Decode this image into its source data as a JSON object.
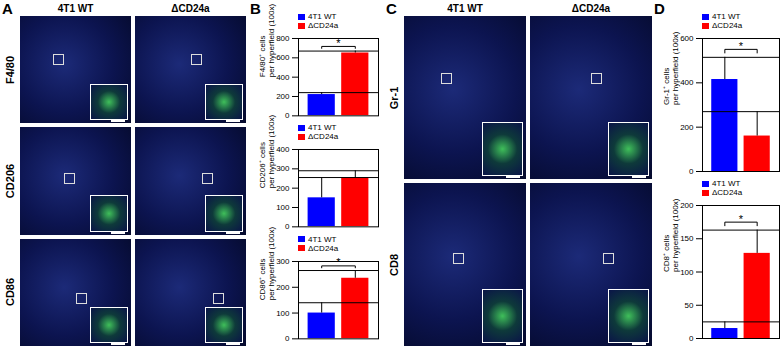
{
  "figure": {
    "panels": [
      {
        "label": "A",
        "type": "images",
        "columns": [
          "4T1 WT",
          "ΔCD24a"
        ],
        "rows": [
          "F4/80",
          "CD206",
          "CD86"
        ]
      },
      {
        "label": "B",
        "type": "charts"
      },
      {
        "label": "C",
        "type": "images",
        "columns": [
          "4T1 WT",
          "ΔCD24a"
        ],
        "rows": [
          "Gr-1",
          "CD8"
        ]
      },
      {
        "label": "D",
        "type": "charts"
      }
    ]
  },
  "chart_data": [
    {
      "type": "bar",
      "ylabel": [
        "F4/80⁺ cells",
        "per hyperfield (100x)"
      ],
      "categories": [
        null
      ],
      "series": [
        {
          "name": "4T1 WT",
          "color": "#0000ff",
          "values": [
            220
          ],
          "errors": [
            20
          ]
        },
        {
          "name": "ΔCD24a",
          "color": "#ff0000",
          "values": [
            650
          ],
          "errors": [
            20
          ]
        }
      ],
      "ylim": [
        0,
        800
      ],
      "yticks": [
        0,
        200,
        400,
        600,
        800
      ],
      "legend": "top left",
      "tick_labels": "y",
      "annotations": [
        "*"
      ]
    },
    {
      "type": "bar",
      "ylabel": [
        "CD206⁺ cells",
        "per hyperfield (100x)"
      ],
      "categories": [
        null
      ],
      "series": [
        {
          "name": "4T1 WT",
          "color": "#0000ff",
          "values": [
            150
          ],
          "errors": [
            105
          ]
        },
        {
          "name": "ΔCD24a",
          "color": "#ff0000",
          "values": [
            255
          ],
          "errors": [
            35
          ]
        }
      ],
      "ylim": [
        0,
        400
      ],
      "yticks": [
        0,
        100,
        200,
        300,
        400
      ],
      "legend": "top left",
      "tick_labels": "y"
    },
    {
      "type": "bar",
      "ylabel": [
        "CD86⁺ cells",
        "per hyperfield (100x)"
      ],
      "categories": [
        null
      ],
      "series": [
        {
          "name": "4T1 WT",
          "color": "#0000ff",
          "values": [
            100
          ],
          "errors": [
            40
          ]
        },
        {
          "name": "ΔCD24a",
          "color": "#ff0000",
          "values": [
            235
          ],
          "errors": [
            30
          ]
        }
      ],
      "ylim": [
        0,
        300
      ],
      "yticks": [
        0,
        100,
        200,
        300
      ],
      "legend": "top left",
      "tick_labels": "y",
      "annotations": [
        "*"
      ]
    },
    {
      "type": "bar",
      "ylabel": [
        "Gr-1⁺ cells",
        "per hyperfield (100x)"
      ],
      "categories": [
        null
      ],
      "series": [
        {
          "name": "4T1 WT",
          "color": "#0000ff",
          "values": [
            415
          ],
          "errors": [
            100
          ]
        },
        {
          "name": "ΔCD24a",
          "color": "#ff0000",
          "values": [
            160
          ],
          "errors": [
            110
          ]
        }
      ],
      "ylim": [
        0,
        600
      ],
      "yticks": [
        0,
        200,
        400,
        600
      ],
      "legend": "top left",
      "tick_labels": "y",
      "annotations": [
        "*"
      ]
    },
    {
      "type": "bar",
      "ylabel": [
        "CD8⁺ cells",
        "per hyperfield (100x)"
      ],
      "categories": [
        null
      ],
      "series": [
        {
          "name": "4T1 WT",
          "color": "#0000ff",
          "values": [
            15
          ],
          "errors": [
            10
          ]
        },
        {
          "name": "ΔCD24a",
          "color": "#ff0000",
          "values": [
            128
          ],
          "errors": [
            35
          ]
        }
      ],
      "ylim": [
        0,
        200
      ],
      "yticks": [
        0,
        50,
        100,
        150,
        200
      ],
      "legend": "top left",
      "tick_labels": "y",
      "annotations": [
        "*"
      ]
    }
  ]
}
